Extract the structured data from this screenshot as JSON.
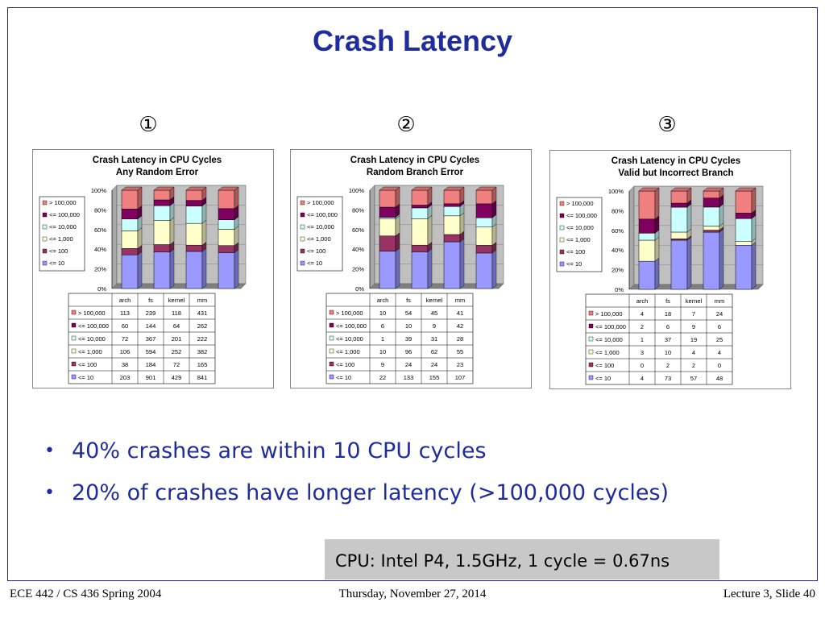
{
  "slide": {
    "title": "Crash Latency",
    "markers": [
      "①",
      "②",
      "③"
    ],
    "bullets": [
      "40% crashes are within 10 CPU cycles",
      "20% of crashes have longer latency (>100,000 cycles)"
    ],
    "note": "CPU: Intel P4, 1.5GHz, 1 cycle = 0.67ns",
    "footer": {
      "left": "ECE 442 / CS 436 Spring 2004",
      "center": "Thursday, November 27, 2014",
      "right": "Lecture 3, Slide 40"
    }
  },
  "chart_data": [
    {
      "type": "bar",
      "stacked": "percent",
      "title": "Crash Latency in CPU Cycles",
      "subtitle": "Any Random Error",
      "categories": [
        "arch",
        "fs",
        "kernel",
        "mm"
      ],
      "y_ticks": [
        "0%",
        "20%",
        "40%",
        "60%",
        "80%",
        "100%"
      ],
      "legend_position": "left",
      "series": [
        {
          "name": ">  100,000",
          "color": "#f08080",
          "values": [
            113,
            239,
            118,
            431
          ]
        },
        {
          "name": "<= 100,000",
          "color": "#800060",
          "values": [
            60,
            144,
            64,
            262
          ]
        },
        {
          "name": "<= 10,000",
          "color": "#ccffff",
          "values": [
            72,
            367,
            201,
            222
          ]
        },
        {
          "name": "<= 1,000",
          "color": "#ffffcc",
          "values": [
            106,
            594,
            252,
            382
          ]
        },
        {
          "name": "<= 100",
          "color": "#993366",
          "values": [
            38,
            184,
            72,
            165
          ]
        },
        {
          "name": "<= 10",
          "color": "#9999ff",
          "values": [
            203,
            901,
            429,
            841
          ]
        }
      ]
    },
    {
      "type": "bar",
      "stacked": "percent",
      "title": "Crash Latency in CPU Cycles",
      "subtitle": "Random Branch Error",
      "categories": [
        "arch",
        "fs",
        "kernel",
        "mm"
      ],
      "y_ticks": [
        "0%",
        "20%",
        "40%",
        "60%",
        "80%",
        "100%"
      ],
      "legend_position": "left",
      "series": [
        {
          "name": ">  100,000",
          "color": "#f08080",
          "values": [
            10,
            54,
            45,
            41
          ]
        },
        {
          "name": "<= 100,000",
          "color": "#800060",
          "values": [
            6,
            10,
            9,
            42
          ]
        },
        {
          "name": "<= 10,000",
          "color": "#ccffff",
          "values": [
            1,
            39,
            31,
            28
          ]
        },
        {
          "name": "<= 1,000",
          "color": "#ffffcc",
          "values": [
            10,
            96,
            62,
            55
          ]
        },
        {
          "name": "<= 100",
          "color": "#993366",
          "values": [
            9,
            24,
            24,
            23
          ]
        },
        {
          "name": "<= 10",
          "color": "#9999ff",
          "values": [
            22,
            133,
            155,
            107
          ]
        }
      ]
    },
    {
      "type": "bar",
      "stacked": "percent",
      "title": "Crash Latency in CPU Cycles",
      "subtitle": "Valid but Incorrect Branch",
      "categories": [
        "arch",
        "fs",
        "kernel",
        "mm"
      ],
      "y_ticks": [
        "0%",
        "20%",
        "40%",
        "60%",
        "80%",
        "100%"
      ],
      "legend_position": "left",
      "series": [
        {
          "name": ">  100,000",
          "color": "#f08080",
          "values": [
            4,
            18,
            7,
            24
          ]
        },
        {
          "name": "<= 100,000",
          "color": "#800060",
          "values": [
            2,
            6,
            9,
            6
          ]
        },
        {
          "name": "<= 10,000",
          "color": "#ccffff",
          "values": [
            1,
            37,
            19,
            25
          ]
        },
        {
          "name": "<= 1,000",
          "color": "#ffffcc",
          "values": [
            3,
            10,
            4,
            4
          ]
        },
        {
          "name": "<= 100",
          "color": "#993366",
          "values": [
            0,
            2,
            2,
            0
          ]
        },
        {
          "name": "<= 10",
          "color": "#9999ff",
          "values": [
            4,
            73,
            57,
            48
          ]
        }
      ]
    }
  ]
}
